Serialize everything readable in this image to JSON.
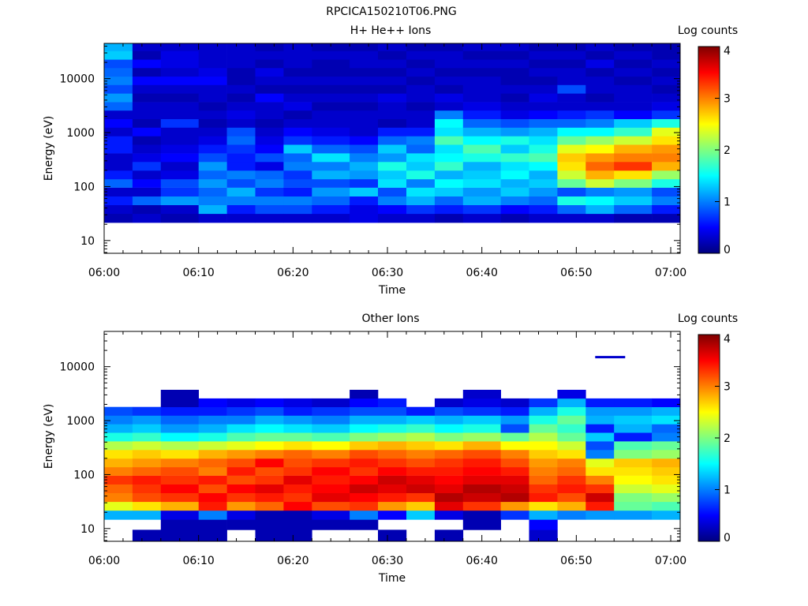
{
  "figure_title": "RPCICA150210T06.PNG",
  "colors": {
    "colormap": [
      "#00007f",
      "#0000ff",
      "#007fff",
      "#00ffff",
      "#7fff7f",
      "#ffff00",
      "#ff7f00",
      "#ff0000",
      "#7f0000"
    ],
    "frame": "#000000",
    "background": "#ffffff"
  },
  "chart_data": [
    {
      "type": "heatmap",
      "title": "H+ He++ Ions",
      "xlabel": "Time",
      "ylabel": "Energy (eV)",
      "colorbar_label": "Log counts",
      "colorbar_ticks": [
        "0",
        "1",
        "2",
        "3",
        "4"
      ],
      "clim": [
        0,
        4
      ],
      "x_ticks": [
        "06:00",
        "06:10",
        "06:20",
        "06:30",
        "06:40",
        "06:50",
        "07:00"
      ],
      "x_range": [
        "06:00",
        "07:01"
      ],
      "y_scale": "log",
      "y_ticks": [
        "10",
        "100",
        "1000",
        "10000"
      ],
      "y_range": [
        5.8,
        45000
      ],
      "energy_bins_eV": [
        26,
        38,
        55,
        80,
        115,
        165,
        240,
        345,
        500,
        720,
        1040,
        1500,
        2150,
        3100,
        4450,
        6400,
        9200,
        13200,
        19000,
        27300,
        39200
      ],
      "time_bins": [
        "06:00",
        "06:03",
        "06:06",
        "06:10",
        "06:13",
        "06:16",
        "06:19",
        "06:22",
        "06:26",
        "06:29",
        "06:32",
        "06:35",
        "06:38",
        "06:42",
        "06:45",
        "06:48",
        "06:51",
        "06:54",
        "06:58"
      ],
      "log_counts": [
        [
          0.2,
          0.3,
          0.6,
          0.3,
          0.9,
          0.6,
          0.3,
          0.3,
          0.6,
          0.6,
          0.3,
          0.5,
          0.3,
          0.9,
          1.1,
          0.8,
          1.0,
          0.9,
          0.8,
          1.3,
          1.2
        ],
        [
          0.3,
          0.2,
          0.9,
          0.3,
          0.5,
          0.3,
          0.7,
          0.4,
          0.3,
          0.2,
          0.5,
          0.2,
          0.3,
          0.3,
          0.2,
          0.3,
          0.5,
          0.2,
          0.5,
          0.2,
          0.3
        ],
        [
          0.2,
          0.3,
          1.1,
          0.7,
          0.8,
          0.4,
          0.3,
          0.5,
          0.4,
          0.3,
          0.3,
          0.7,
          0.3,
          0.3,
          0.2,
          0.3,
          0.5,
          0.3,
          0.4,
          0.4,
          0.3
        ],
        [
          0.3,
          1.2,
          1.0,
          0.9,
          1.1,
          0.9,
          1.1,
          0.8,
          0.6,
          0.4,
          0.3,
          0.2,
          0.3,
          0.2,
          0.3,
          0.3,
          0.5,
          0.4,
          0.3,
          0.3,
          0.3
        ],
        [
          0.3,
          0.6,
          1.0,
          1.2,
          0.8,
          1.0,
          0.6,
          0.6,
          0.7,
          0.9,
          0.8,
          0.3,
          0.4,
          0.3,
          0.2,
          0.3,
          0.2,
          0.2,
          0.3,
          0.3,
          0.3
        ],
        [
          0.3,
          0.8,
          1.0,
          0.7,
          1.0,
          0.9,
          0.4,
          0.8,
          0.5,
          0.4,
          0.3,
          0.2,
          0.3,
          0.3,
          0.5,
          0.2,
          0.3,
          0.4,
          0.2,
          0.3,
          0.2
        ],
        [
          0.3,
          0.8,
          1.0,
          0.6,
          0.8,
          0.7,
          1.0,
          0.9,
          1.3,
          0.7,
          0.5,
          0.3,
          0.2,
          0.4,
          0.3,
          0.2,
          0.3,
          0.2,
          0.3,
          0.3,
          0.3
        ],
        [
          0.3,
          0.6,
          0.9,
          1.1,
          0.8,
          1.2,
          1.0,
          1.4,
          0.9,
          0.6,
          0.4,
          0.3,
          0.3,
          0.2,
          0.3,
          0.2,
          0.3,
          0.2,
          0.2,
          0.3,
          0.2
        ],
        [
          0.4,
          0.4,
          0.6,
          1.3,
          0.7,
          1.1,
          1.2,
          1.0,
          0.8,
          0.5,
          0.3,
          0.3,
          0.3,
          0.2,
          0.3,
          0.2,
          0.3,
          0.2,
          0.3,
          0.3,
          0.2
        ],
        [
          0.3,
          0.5,
          1.0,
          0.8,
          1.4,
          1.3,
          1.6,
          1.1,
          1.3,
          0.9,
          0.6,
          0.2,
          0.3,
          0.3,
          0.4,
          0.2,
          0.3,
          0.2,
          0.3,
          0.2,
          0.3
        ],
        [
          0.3,
          0.7,
          1.2,
          1.4,
          1.0,
          1.6,
          1.3,
          1.4,
          0.9,
          1.0,
          0.6,
          0.3,
          0.3,
          0.2,
          0.3,
          0.3,
          0.2,
          0.3,
          0.2,
          0.3,
          0.2
        ],
        [
          0.2,
          0.6,
          0.9,
          1.3,
          1.5,
          1.2,
          1.7,
          1.5,
          1.4,
          1.8,
          1.4,
          1.5,
          1.0,
          0.3,
          0.4,
          0.2,
          0.3,
          0.2,
          0.3,
          0.3,
          0.2
        ],
        [
          0.3,
          0.7,
          1.2,
          1.1,
          1.4,
          1.3,
          1.2,
          1.6,
          1.8,
          1.5,
          1.2,
          0.9,
          0.6,
          0.4,
          0.3,
          0.3,
          0.3,
          0.2,
          0.3,
          0.2,
          0.3
        ],
        [
          0.2,
          0.5,
          1.0,
          1.3,
          1.2,
          1.5,
          1.4,
          1.7,
          1.3,
          1.6,
          1.1,
          0.8,
          0.4,
          0.3,
          0.2,
          0.3,
          0.2,
          0.2,
          0.3,
          0.2,
          0.3
        ],
        [
          0.3,
          0.6,
          0.9,
          1.1,
          1.3,
          1.2,
          1.5,
          1.8,
          1.6,
          1.4,
          1.2,
          0.9,
          0.5,
          0.3,
          0.4,
          0.3,
          0.2,
          0.3,
          0.2,
          0.3,
          0.2
        ],
        [
          0.3,
          0.9,
          1.6,
          0.8,
          1.9,
          2.3,
          2.6,
          2.7,
          2.4,
          1.9,
          1.5,
          0.9,
          0.6,
          0.3,
          0.3,
          0.8,
          0.3,
          0.3,
          0.2,
          0.3,
          0.2
        ],
        [
          0.3,
          1.2,
          1.5,
          1.0,
          2.3,
          2.8,
          3.1,
          2.9,
          2.5,
          2.1,
          1.5,
          1.0,
          0.7,
          0.3,
          0.2,
          0.3,
          0.3,
          0.2,
          0.4,
          0.2,
          0.3
        ],
        [
          0.2,
          0.9,
          1.3,
          1.1,
          2.0,
          2.6,
          3.3,
          3.0,
          2.8,
          2.3,
          1.7,
          1.3,
          0.5,
          0.3,
          0.3,
          0.3,
          0.2,
          0.3,
          0.2,
          0.3,
          0.2
        ],
        [
          0.2,
          0.6,
          1.0,
          0.8,
          1.6,
          2.1,
          2.8,
          3.0,
          2.9,
          2.6,
          2.4,
          1.6,
          0.7,
          0.4,
          0.3,
          0.2,
          0.3,
          0.2,
          0.3,
          0.2,
          0.2
        ]
      ]
    },
    {
      "type": "heatmap",
      "title": "Other Ions",
      "xlabel": "Time",
      "ylabel": "Energy (eV)",
      "colorbar_label": "Log counts",
      "colorbar_ticks": [
        "0",
        "1",
        "2",
        "3",
        "4"
      ],
      "clim": [
        0,
        4
      ],
      "x_ticks": [
        "06:00",
        "06:10",
        "06:20",
        "06:30",
        "06:40",
        "06:50",
        "07:00"
      ],
      "x_range": [
        "06:00",
        "07:01"
      ],
      "y_scale": "log",
      "y_ticks": [
        "10",
        "100",
        "1000",
        "10000"
      ],
      "y_range": [
        5.8,
        45000
      ],
      "energy_bins_eV": [
        7.5,
        12,
        18,
        26,
        38,
        55,
        80,
        115,
        165,
        240,
        345,
        500,
        720,
        1040,
        1500,
        2150,
        3100
      ],
      "time_bins": [
        "06:00",
        "06:03",
        "06:06",
        "06:10",
        "06:13",
        "06:16",
        "06:19",
        "06:22",
        "06:26",
        "06:29",
        "06:32",
        "06:35",
        "06:38",
        "06:42",
        "06:45",
        "06:48",
        "06:51",
        "06:54",
        "06:58"
      ],
      "log_counts": [
        [
          0.0,
          0.0,
          1.2,
          2.4,
          3.0,
          3.1,
          3.3,
          3.0,
          2.8,
          2.6,
          2.2,
          1.6,
          1.2,
          1.0,
          0.8,
          0.0,
          0.0
        ],
        [
          0.2,
          0.0,
          1.2,
          2.6,
          3.2,
          3.3,
          3.4,
          3.1,
          2.9,
          2.7,
          2.3,
          1.7,
          1.3,
          1.1,
          0.7,
          0.0,
          0.0
        ],
        [
          0.2,
          0.2,
          0.4,
          2.8,
          3.3,
          3.5,
          3.3,
          3.2,
          3.0,
          2.6,
          2.2,
          1.5,
          1.1,
          0.9,
          0.6,
          0.2,
          0.2
        ],
        [
          0.2,
          0.2,
          1.0,
          3.4,
          3.5,
          3.2,
          3.4,
          3.0,
          3.1,
          2.8,
          2.3,
          1.6,
          1.2,
          1.0,
          0.6,
          0.5,
          0.0
        ],
        [
          0.0,
          0.2,
          0.4,
          2.9,
          3.3,
          3.5,
          3.2,
          3.4,
          3.2,
          2.9,
          2.4,
          1.8,
          1.4,
          1.0,
          0.7,
          0.4,
          0.0
        ],
        [
          0.2,
          0.2,
          0.2,
          3.1,
          3.4,
          3.6,
          3.3,
          3.2,
          3.5,
          3.0,
          2.5,
          1.9,
          1.5,
          1.2,
          0.8,
          0.5,
          0.0
        ],
        [
          0.2,
          0.2,
          0.2,
          3.5,
          3.3,
          3.4,
          3.6,
          3.3,
          3.2,
          3.1,
          2.6,
          1.9,
          1.4,
          1.1,
          0.6,
          0.4,
          0.0
        ],
        [
          0.0,
          0.2,
          0.4,
          3.2,
          3.6,
          3.5,
          3.4,
          3.5,
          3.3,
          3.0,
          2.5,
          1.8,
          1.3,
          1.0,
          0.7,
          0.3,
          0.0
        ],
        [
          0.0,
          0.2,
          1.0,
          3.3,
          3.5,
          3.7,
          3.5,
          3.3,
          3.4,
          3.2,
          2.7,
          2.0,
          1.5,
          1.2,
          0.8,
          0.5,
          0.2
        ],
        [
          0.2,
          0.0,
          0.5,
          2.9,
          3.4,
          3.6,
          3.7,
          3.5,
          3.3,
          3.1,
          2.8,
          2.1,
          1.6,
          1.2,
          0.8,
          0.6,
          0.0
        ],
        [
          0.0,
          0.0,
          1.3,
          2.7,
          3.3,
          3.7,
          3.6,
          3.4,
          3.2,
          3.0,
          2.7,
          2.2,
          1.7,
          1.3,
          0.6,
          0.0,
          0.0
        ],
        [
          0.2,
          0.0,
          0.4,
          3.6,
          3.8,
          3.6,
          3.5,
          3.4,
          3.3,
          3.1,
          2.6,
          2.0,
          1.5,
          1.2,
          0.8,
          0.3,
          0.0
        ],
        [
          0.0,
          0.2,
          0.2,
          3.3,
          3.7,
          3.8,
          3.6,
          3.5,
          3.4,
          3.2,
          2.8,
          2.1,
          1.6,
          1.3,
          0.7,
          0.4,
          0.3
        ],
        [
          0.0,
          0.0,
          0.7,
          2.9,
          3.8,
          3.7,
          3.6,
          3.4,
          3.2,
          3.0,
          2.5,
          1.9,
          0.8,
          1.1,
          0.6,
          0.3,
          0.0
        ],
        [
          0.3,
          0.5,
          1.2,
          2.6,
          3.4,
          3.3,
          3.1,
          3.0,
          2.9,
          2.7,
          2.5,
          2.2,
          1.9,
          1.6,
          1.2,
          0.7,
          0.0
        ],
        [
          0.0,
          0.0,
          1.0,
          2.8,
          3.2,
          3.4,
          3.3,
          3.1,
          3.0,
          2.6,
          2.3,
          1.9,
          1.7,
          1.9,
          1.6,
          1.2,
          0.4
        ],
        [
          0.0,
          0.0,
          1.1,
          3.4,
          3.7,
          3.3,
          3.0,
          2.6,
          2.4,
          1.0,
          0.8,
          1.3,
          0.6,
          1.2,
          1.1,
          0.6,
          0.0
        ],
        [
          0.0,
          0.0,
          1.1,
          1.9,
          2.0,
          2.3,
          2.5,
          2.6,
          2.7,
          2.0,
          1.8,
          0.6,
          1.2,
          1.3,
          1.1,
          0.6,
          0.0
        ],
        [
          0.0,
          0.0,
          1.2,
          1.8,
          2.1,
          2.4,
          2.6,
          2.7,
          2.8,
          2.1,
          1.9,
          1.0,
          0.9,
          1.4,
          1.2,
          0.5,
          0.0
        ]
      ],
      "extra_mark": {
        "time": "06:52",
        "energy_eV": 15000,
        "log_count": 0.3
      }
    }
  ]
}
